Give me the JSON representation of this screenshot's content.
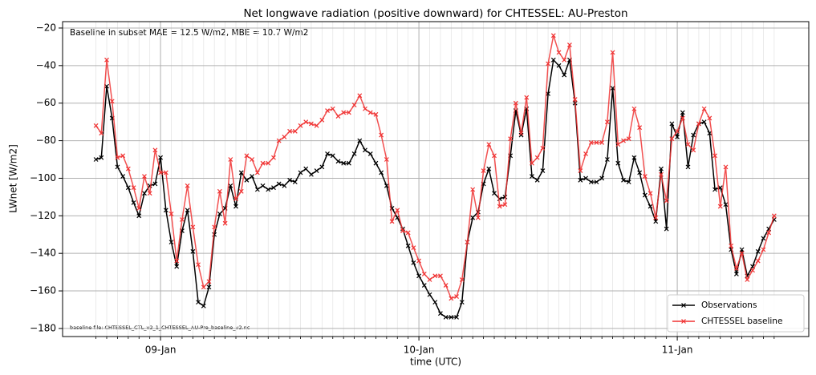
{
  "chart_data": {
    "type": "line",
    "title": "Net longwave radiation (positive downward) for CHTESSEL: AU-Preston",
    "annotation": "Baseline in subset MAE = 12.5 W/m2, MBE = 10.7 W/m2",
    "footnote": "baseline file: CHTESSEL_CTL_v2_1_CHTESSEL_AU-Pre_baseline_v2.nc",
    "x_label": "time (UTC)",
    "y_label": "LWnet [W/m2]",
    "categories": [
      null,
      null,
      null,
      null,
      null,
      null,
      null,
      null,
      null,
      null,
      null,
      null,
      "09-Jan",
      null,
      null,
      null,
      null,
      null,
      null,
      null,
      null,
      null,
      null,
      null,
      null,
      null,
      null,
      null,
      null,
      null,
      null,
      null,
      null,
      null,
      null,
      null,
      null,
      null,
      null,
      null,
      null,
      null,
      null,
      null,
      null,
      null,
      null,
      null,
      null,
      null,
      null,
      null,
      null,
      null,
      null,
      null,
      null,
      null,
      null,
      null,
      "10-Jan",
      null,
      null,
      null,
      null,
      null,
      null,
      null,
      null,
      null,
      null,
      null,
      null,
      null,
      null,
      null,
      null,
      null,
      null,
      null,
      null,
      null,
      null,
      null,
      null,
      null,
      null,
      null,
      null,
      null,
      null,
      null,
      null,
      null,
      null,
      null,
      null,
      null,
      null,
      null,
      null,
      null,
      null,
      null,
      null,
      null,
      null,
      null,
      "11-Jan",
      null,
      null,
      null,
      null,
      null,
      null,
      null,
      null,
      null,
      null,
      null,
      null,
      null,
      null,
      null,
      null,
      null,
      null
    ],
    "series": [
      {
        "name": "Observations",
        "color": "#000000",
        "values": [
          -90,
          -89,
          -51,
          -68,
          -94,
          -99,
          -105,
          -113,
          -120,
          -108,
          -104,
          -103,
          -89,
          -117,
          -134,
          -147,
          -128,
          -117,
          -139,
          -166,
          -168,
          -158,
          -130,
          -119,
          -116,
          -104,
          -115,
          -97,
          -101,
          -99,
          -106,
          -104,
          -106,
          -105,
          -103,
          -104,
          -101,
          -102,
          -97,
          -95,
          -98,
          -96,
          -94,
          -87,
          -88,
          -91,
          -92,
          -92,
          -87,
          -80,
          -85,
          -87,
          -92,
          -97,
          -104,
          -116,
          -121,
          -127,
          -136,
          -145,
          -152,
          -157,
          -162,
          -166,
          -172,
          -174,
          -174,
          -174,
          -166,
          -134,
          -121,
          -118,
          -103,
          -95,
          -108,
          -111,
          -110,
          -88,
          -64,
          -77,
          -63,
          -99,
          -101,
          -96,
          -55,
          -37,
          -40,
          -45,
          -37,
          -60,
          -101,
          -100,
          -102,
          -102,
          -100,
          -90,
          -52,
          -92,
          -101,
          -102,
          -89,
          -97,
          -109,
          -115,
          -123,
          -95,
          -127,
          -71,
          -78,
          -65,
          -94,
          -77,
          -71,
          -70,
          -76,
          -106,
          -105,
          -114,
          -138,
          -151,
          -138,
          -152,
          -147,
          -139,
          -132,
          -127,
          -122
        ]
      },
      {
        "name": "CHTESSEL baseline",
        "color": "#f03232",
        "values": [
          -72,
          -76,
          -37,
          -59,
          -89,
          -88,
          -95,
          -105,
          -116,
          -99,
          -108,
          -85,
          -97,
          -97,
          -119,
          -144,
          -122,
          -104,
          -126,
          -146,
          -158,
          -155,
          -126,
          -107,
          -124,
          -90,
          -111,
          -107,
          -88,
          -90,
          -97,
          -92,
          -92,
          -89,
          -80,
          -78,
          -75,
          -75,
          -72,
          -70,
          -71,
          -72,
          -69,
          -64,
          -63,
          -67,
          -65,
          -65,
          -61,
          -56,
          -63,
          -65,
          -66,
          -77,
          -90,
          -123,
          -117,
          -128,
          -129,
          -137,
          -144,
          -151,
          -154,
          -152,
          -152,
          -157,
          -164,
          -163,
          -154,
          -134,
          -106,
          -121,
          -96,
          -82,
          -88,
          -115,
          -114,
          -79,
          -60,
          -76,
          -57,
          -92,
          -89,
          -84,
          -39,
          -24,
          -33,
          -37,
          -29,
          -58,
          -96,
          -87,
          -81,
          -81,
          -81,
          -70,
          -33,
          -82,
          -80,
          -79,
          -63,
          -73,
          -99,
          -108,
          -121,
          -98,
          -112,
          -79,
          -75,
          -68,
          -82,
          -85,
          -71,
          -63,
          -68,
          -88,
          -115,
          -94,
          -136,
          -148,
          -140,
          -154,
          -149,
          -144,
          -138,
          -129,
          -120
        ]
      }
    ],
    "ylim": [
      -184.3,
      -16.6
    ],
    "yticks": [
      {
        "value": -180,
        "label": "−180"
      },
      {
        "value": -160,
        "label": "−160"
      },
      {
        "value": -140,
        "label": "−140"
      },
      {
        "value": -120,
        "label": "−120"
      },
      {
        "value": -100,
        "label": "−100"
      },
      {
        "value": -80,
        "label": "−80"
      },
      {
        "value": -60,
        "label": "−60"
      },
      {
        "value": -40,
        "label": "−40"
      },
      {
        "value": -20,
        "label": "−20"
      }
    ],
    "grid": true,
    "legend": "lower right"
  }
}
